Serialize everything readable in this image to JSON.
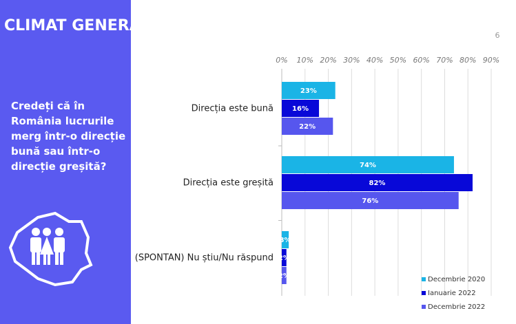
{
  "header": {
    "title": "CLIMAT GENERAL",
    "page": "6",
    "question": "Credeți că în România lucrurile merg într-o direcție bună sau într-o direcție greșită?"
  },
  "chart_data": {
    "type": "bar",
    "orientation": "horizontal",
    "categories": [
      "Direcția este bună",
      "Direcția este greșită",
      "(SPONTAN) Nu știu/Nu răspund"
    ],
    "series": [
      {
        "name": "Decembrie 2020",
        "color": "#1ab4e6",
        "values": [
          23,
          74,
          3
        ],
        "value_labels": [
          "23%",
          "74%",
          "3%"
        ]
      },
      {
        "name": "Ianuarie 2022",
        "color": "#0808d8",
        "values": [
          16,
          82,
          2
        ],
        "value_labels": [
          "16%",
          "82%",
          "2%"
        ]
      },
      {
        "name": "Decembrie 2022",
        "color": "#5656ee",
        "values": [
          22,
          76,
          2
        ],
        "value_labels": [
          "22%",
          "76%",
          "2%"
        ]
      }
    ],
    "xlim": [
      0,
      90
    ],
    "xticks": [
      {
        "value": 0,
        "label": "0%"
      },
      {
        "value": 10,
        "label": "10%"
      },
      {
        "value": 20,
        "label": "20%"
      },
      {
        "value": 30,
        "label": "30%"
      },
      {
        "value": 40,
        "label": "40%"
      },
      {
        "value": 50,
        "label": "50%"
      },
      {
        "value": 60,
        "label": "60%"
      },
      {
        "value": 70,
        "label": "70%"
      },
      {
        "value": 80,
        "label": "80%"
      },
      {
        "value": 90,
        "label": "90%"
      }
    ],
    "grid": true,
    "legend": "bottom-right"
  }
}
